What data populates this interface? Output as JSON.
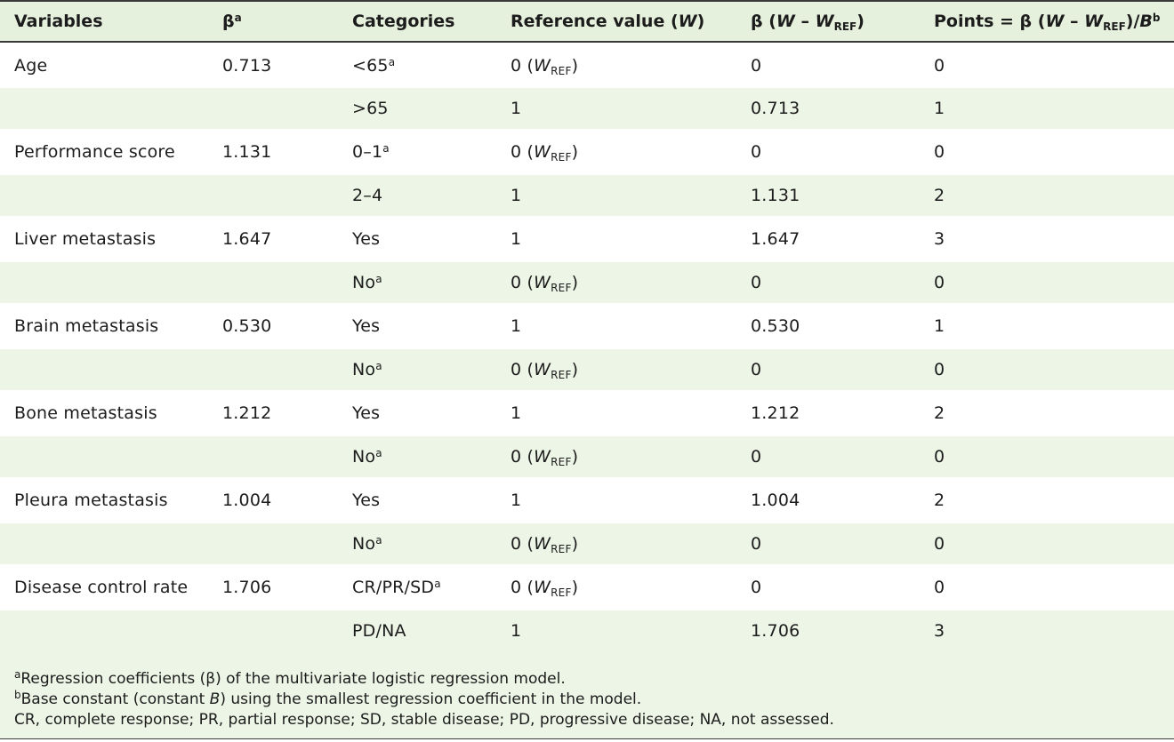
{
  "headers": {
    "variables": "Variables",
    "beta": "β",
    "beta_sup": "a",
    "categories": "Categories",
    "reference": "Reference value (",
    "reference_w": "W",
    "reference_close": ")",
    "beta_w_prefix": "β (",
    "beta_w_w": "W",
    "beta_w_minus": " – ",
    "beta_w_wref": "W",
    "beta_w_ref_sub": "REF",
    "beta_w_close": ")",
    "points_prefix": "Points = β (",
    "points_w": "W",
    "points_minus": " – ",
    "points_wref": "W",
    "points_ref_sub": "REF",
    "points_mid": ")/",
    "points_b": "B",
    "points_sup": "b"
  },
  "ref_text": {
    "zero": "0 (",
    "w": "W",
    "sub": "REF",
    "close": ")"
  },
  "rows": [
    {
      "variable": "Age",
      "beta": "0.713",
      "category": "<65",
      "cat_sup": "a",
      "reference": "0",
      "is_ref": true,
      "beta_w": "0",
      "points": "0"
    },
    {
      "variable": "",
      "beta": "",
      "category": ">65",
      "cat_sup": "",
      "reference": "1",
      "is_ref": false,
      "beta_w": "0.713",
      "points": "1"
    },
    {
      "variable": "Performance score",
      "beta": "1.131",
      "category": "0–1",
      "cat_sup": "a",
      "reference": "0",
      "is_ref": true,
      "beta_w": "0",
      "points": "0"
    },
    {
      "variable": "",
      "beta": "",
      "category": "2–4",
      "cat_sup": "",
      "reference": "1",
      "is_ref": false,
      "beta_w": "1.131",
      "points": "2"
    },
    {
      "variable": "Liver metastasis",
      "beta": "1.647",
      "category": "Yes",
      "cat_sup": "",
      "reference": "1",
      "is_ref": false,
      "beta_w": "1.647",
      "points": "3"
    },
    {
      "variable": "",
      "beta": "",
      "category": "No",
      "cat_sup": "a",
      "reference": "0",
      "is_ref": true,
      "beta_w": "0",
      "points": "0"
    },
    {
      "variable": "Brain metastasis",
      "beta": "0.530",
      "category": "Yes",
      "cat_sup": "",
      "reference": "1",
      "is_ref": false,
      "beta_w": "0.530",
      "points": "1"
    },
    {
      "variable": "",
      "beta": "",
      "category": "No",
      "cat_sup": "a",
      "reference": "0",
      "is_ref": true,
      "beta_w": "0",
      "points": "0"
    },
    {
      "variable": "Bone metastasis",
      "beta": "1.212",
      "category": "Yes",
      "cat_sup": "",
      "reference": "1",
      "is_ref": false,
      "beta_w": "1.212",
      "points": "2"
    },
    {
      "variable": "",
      "beta": "",
      "category": "No",
      "cat_sup": "a",
      "reference": "0",
      "is_ref": true,
      "beta_w": "0",
      "points": "0"
    },
    {
      "variable": "Pleura metastasis",
      "beta": "1.004",
      "category": "Yes",
      "cat_sup": "",
      "reference": "1",
      "is_ref": false,
      "beta_w": "1.004",
      "points": "2"
    },
    {
      "variable": "",
      "beta": "",
      "category": "No",
      "cat_sup": "a",
      "reference": "0",
      "is_ref": true,
      "beta_w": "0",
      "points": "0"
    },
    {
      "variable": "Disease control rate",
      "beta": "1.706",
      "category": "CR/PR/SD",
      "cat_sup": "a",
      "reference": "0",
      "is_ref": true,
      "beta_w": "0",
      "points": "0"
    },
    {
      "variable": "",
      "beta": "",
      "category": "PD/NA",
      "cat_sup": "",
      "reference": "1",
      "is_ref": false,
      "beta_w": "1.706",
      "points": "3"
    }
  ],
  "footnotes": {
    "a_sup": "a",
    "a_text": "Regression coefficients (β) of the multivariate logistic regression model.",
    "b_sup": "b",
    "b_text_1": "Base constant (constant ",
    "b_text_b": "B",
    "b_text_2": ") using the smallest regression coefficient in the model.",
    "abbrev": "CR, complete response; PR, partial response; SD, stable disease; PD, progressive disease; NA, not assessed."
  }
}
